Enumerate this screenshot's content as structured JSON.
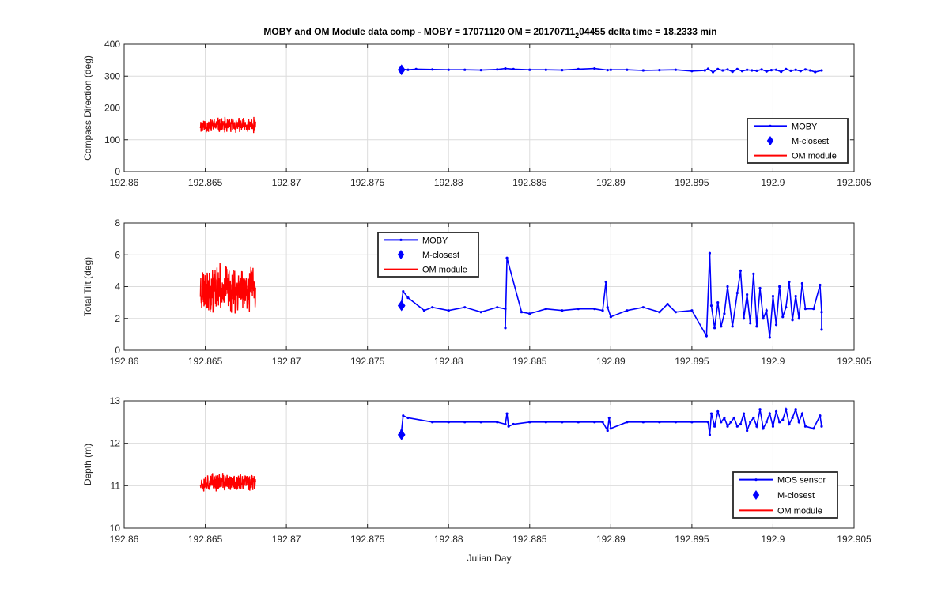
{
  "figure": {
    "title_main": "MOBY and OM Module data comp - MOBY = 17071120 OM = 20170711",
    "title_sub": "2",
    "title_rest": "04455 delta time = 18.2333 min",
    "colors": {
      "moby": "#0000ff",
      "om": "#ff0000"
    }
  },
  "chart_data": [
    {
      "type": "line",
      "ylabel": "Compass Direction (deg)",
      "xlabel": "",
      "xlim": [
        192.86,
        192.905
      ],
      "ylim": [
        0,
        400
      ],
      "xticks": [
        192.86,
        192.865,
        192.87,
        192.875,
        192.88,
        192.885,
        192.89,
        192.895,
        192.9,
        192.905
      ],
      "xtick_labels": [
        "192.86",
        "192.865",
        "192.87",
        "192.875",
        "192.88",
        "192.885",
        "192.89",
        "192.895",
        "192.9",
        "192.905"
      ],
      "yticks": [
        0,
        100,
        200,
        300,
        400
      ],
      "ytick_labels": [
        "0",
        "100",
        "200",
        "300",
        "400"
      ],
      "grid": true,
      "legend_position": "right",
      "legend": [
        "MOBY",
        "M-closest",
        "OM module"
      ],
      "series": [
        {
          "name": "MOBY",
          "style": "line-dot",
          "x": [
            192.8771,
            192.8775,
            192.878,
            192.879,
            192.88,
            192.881,
            192.882,
            192.883,
            192.8835,
            192.884,
            192.885,
            192.886,
            192.887,
            192.888,
            192.889,
            192.8898,
            192.89,
            192.891,
            192.892,
            192.893,
            192.894,
            192.895,
            192.8958,
            192.896,
            192.8963,
            192.8966,
            192.8969,
            192.8972,
            192.8975,
            192.8978,
            192.8981,
            192.8984,
            192.8987,
            192.899,
            192.8993,
            192.8996,
            192.8999,
            192.9002,
            192.9005,
            192.9008,
            192.9011,
            192.9014,
            192.9017,
            192.902,
            192.9023,
            192.9026,
            192.903
          ],
          "y": [
            322,
            320,
            322,
            321,
            320,
            320,
            319,
            321,
            324,
            322,
            320,
            320,
            319,
            322,
            324,
            319,
            320,
            320,
            318,
            319,
            320,
            316,
            318,
            323,
            313,
            322,
            318,
            321,
            314,
            322,
            316,
            320,
            318,
            317,
            321,
            315,
            319,
            320,
            314,
            322,
            317,
            320,
            316,
            321,
            318,
            313,
            318
          ]
        },
        {
          "name": "M-closest",
          "style": "diamond",
          "x": [
            192.8771
          ],
          "y": [
            320
          ]
        },
        {
          "name": "OM module",
          "style": "noise",
          "x_range": [
            192.8647,
            192.8681
          ],
          "center": 145,
          "amplitude": 40,
          "seed": 11
        }
      ]
    },
    {
      "type": "line",
      "ylabel": "Total Tilt (deg)",
      "xlabel": "",
      "xlim": [
        192.86,
        192.905
      ],
      "ylim": [
        0,
        8
      ],
      "xticks": [
        192.86,
        192.865,
        192.87,
        192.875,
        192.88,
        192.885,
        192.89,
        192.895,
        192.9,
        192.905
      ],
      "xtick_labels": [
        "192.86",
        "192.865",
        "192.87",
        "192.875",
        "192.88",
        "192.885",
        "192.89",
        "192.895",
        "192.9",
        "192.905"
      ],
      "yticks": [
        0,
        2,
        4,
        6,
        8
      ],
      "ytick_labels": [
        "0",
        "2",
        "4",
        "6",
        "8"
      ],
      "grid": true,
      "legend_position": "top-center",
      "legend": [
        "MOBY",
        "M-closest",
        "OM module"
      ],
      "series": [
        {
          "name": "MOBY",
          "style": "line-dot",
          "x": [
            192.8771,
            192.8772,
            192.8775,
            192.8785,
            192.879,
            192.88,
            192.881,
            192.882,
            192.883,
            192.8835,
            192.8835,
            192.8836,
            192.8845,
            192.885,
            192.886,
            192.887,
            192.888,
            192.889,
            192.8895,
            192.8897,
            192.8898,
            192.89,
            192.891,
            192.892,
            192.893,
            192.8935,
            192.894,
            192.895,
            192.8959,
            192.8961,
            192.8962,
            192.8964,
            192.8966,
            192.8968,
            192.897,
            192.8972,
            192.8975,
            192.8978,
            192.898,
            192.8982,
            192.8984,
            192.8986,
            192.8988,
            192.899,
            192.8992,
            192.8994,
            192.8996,
            192.8998,
            192.9,
            192.9002,
            192.9004,
            192.9006,
            192.9008,
            192.901,
            192.9012,
            192.9014,
            192.9016,
            192.9018,
            192.902,
            192.9025,
            192.9029,
            192.903,
            192.903
          ],
          "y": [
            3.0,
            3.7,
            3.3,
            2.5,
            2.7,
            2.5,
            2.7,
            2.4,
            2.7,
            2.6,
            1.4,
            5.8,
            2.4,
            2.3,
            2.6,
            2.5,
            2.6,
            2.6,
            2.5,
            4.3,
            2.7,
            2.1,
            2.5,
            2.7,
            2.4,
            2.9,
            2.4,
            2.5,
            0.9,
            6.1,
            2.8,
            1.4,
            3.0,
            1.5,
            2.3,
            4.0,
            1.5,
            3.6,
            5.0,
            2.0,
            3.5,
            1.7,
            4.8,
            1.5,
            3.9,
            2.0,
            2.5,
            0.8,
            3.4,
            1.6,
            4.0,
            2.1,
            2.7,
            4.3,
            1.9,
            3.4,
            2.0,
            4.2,
            2.6,
            2.6,
            4.1,
            2.4,
            1.3
          ]
        },
        {
          "name": "M-closest",
          "style": "diamond",
          "x": [
            192.8771
          ],
          "y": [
            2.8
          ]
        },
        {
          "name": "OM module",
          "style": "noise",
          "x_range": [
            192.8647,
            192.8681
          ],
          "center": 3.9,
          "amplitude": 2.4,
          "seed": 23
        }
      ]
    },
    {
      "type": "line",
      "ylabel": "Depth (m)",
      "xlabel": "Julian Day",
      "xlim": [
        192.86,
        192.905
      ],
      "ylim": [
        10,
        13
      ],
      "xticks": [
        192.86,
        192.865,
        192.87,
        192.875,
        192.88,
        192.885,
        192.89,
        192.895,
        192.9,
        192.905
      ],
      "xtick_labels": [
        "192.86",
        "192.865",
        "192.87",
        "192.875",
        "192.88",
        "192.885",
        "192.89",
        "192.895",
        "192.9",
        "192.905"
      ],
      "yticks": [
        10,
        11,
        12,
        13
      ],
      "ytick_labels": [
        "10",
        "11",
        "12",
        "13"
      ],
      "grid": true,
      "legend_position": "bottom-right",
      "legend": [
        "MOS sensor",
        "M-closest",
        "OM module"
      ],
      "series": [
        {
          "name": "MOS sensor",
          "style": "line-dot",
          "x": [
            192.8771,
            192.8772,
            192.8775,
            192.879,
            192.88,
            192.881,
            192.882,
            192.883,
            192.8835,
            192.8836,
            192.8837,
            192.884,
            192.885,
            192.886,
            192.887,
            192.888,
            192.889,
            192.8895,
            192.8898,
            192.8899,
            192.89,
            192.891,
            192.892,
            192.893,
            192.894,
            192.895,
            192.896,
            192.8961,
            192.8962,
            192.8964,
            192.8966,
            192.8968,
            192.897,
            192.8972,
            192.8974,
            192.8976,
            192.8978,
            192.898,
            192.8982,
            192.8984,
            192.8986,
            192.8988,
            192.899,
            192.8992,
            192.8994,
            192.8996,
            192.8998,
            192.9,
            192.9002,
            192.9004,
            192.9006,
            192.9008,
            192.901,
            192.9012,
            192.9014,
            192.9016,
            192.9018,
            192.902,
            192.9025,
            192.9029,
            192.903
          ],
          "y": [
            12.3,
            12.65,
            12.6,
            12.5,
            12.5,
            12.5,
            12.5,
            12.5,
            12.45,
            12.7,
            12.4,
            12.45,
            12.5,
            12.5,
            12.5,
            12.5,
            12.5,
            12.5,
            12.3,
            12.6,
            12.35,
            12.5,
            12.5,
            12.5,
            12.5,
            12.5,
            12.5,
            12.2,
            12.7,
            12.4,
            12.75,
            12.5,
            12.6,
            12.4,
            12.5,
            12.6,
            12.4,
            12.45,
            12.7,
            12.3,
            12.5,
            12.6,
            12.4,
            12.8,
            12.35,
            12.5,
            12.7,
            12.4,
            12.75,
            12.5,
            12.55,
            12.8,
            12.45,
            12.6,
            12.8,
            12.5,
            12.7,
            12.4,
            12.35,
            12.65,
            12.4
          ]
        },
        {
          "name": "M-closest",
          "style": "diamond",
          "x": [
            192.8771
          ],
          "y": [
            12.2
          ]
        },
        {
          "name": "OM module",
          "style": "noise",
          "x_range": [
            192.8647,
            192.8681
          ],
          "center": 11.08,
          "amplitude": 0.35,
          "seed": 37
        }
      ]
    }
  ]
}
